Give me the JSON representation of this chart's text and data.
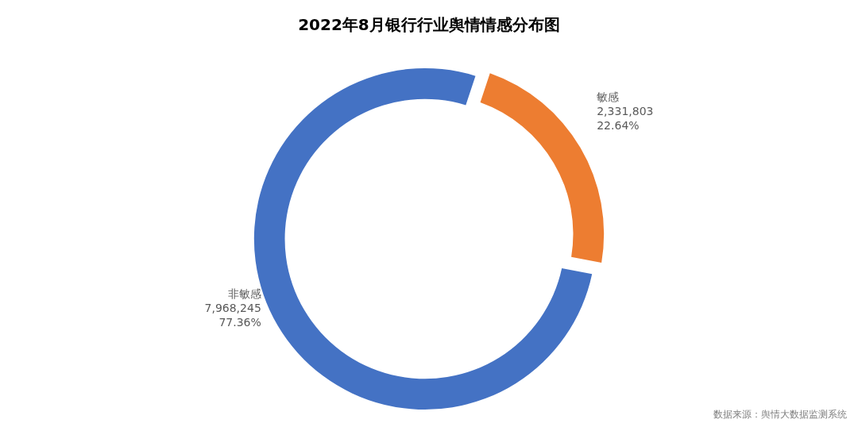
{
  "chart_data": {
    "type": "donut",
    "title": "2022年8月银行行业舆情情感分布图",
    "categories": [
      "敏感",
      "非敏感"
    ],
    "values": [
      2331803,
      7968245
    ],
    "colors": [
      "#ed7d31",
      "#4472c4"
    ],
    "value_labels": [
      "2,331,803\n22.64%",
      "7,968,245\n77.36%"
    ],
    "annotations": [
      "数据来源：舆情大数据监测系统"
    ]
  }
}
